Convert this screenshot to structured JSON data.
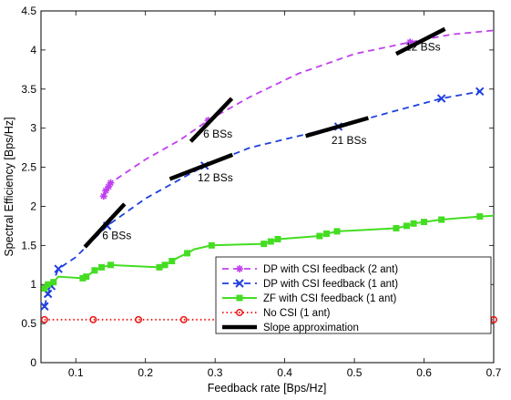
{
  "chart_data": {
    "type": "line",
    "xlabel": "Feedback rate [Bps/Hz]",
    "ylabel": "Spectral Efficiency [Bps/Hz]",
    "xlim": [
      0.05,
      0.7
    ],
    "ylim": [
      0,
      4.5
    ],
    "xticks": [
      "0.1",
      "0.2",
      "0.3",
      "0.4",
      "0.5",
      "0.6",
      "0.7"
    ],
    "yticks": [
      "0",
      "0.5",
      "1",
      "1.5",
      "2",
      "2.5",
      "3",
      "3.5",
      "4",
      "4.5"
    ],
    "grid": false,
    "legend_position": "bottom-right",
    "series": [
      {
        "name": "DP with CSI feedback (2 ant)",
        "color": "#bf40f0",
        "line": "dashed",
        "marker": "asterisk",
        "x": [
          0.14,
          0.143,
          0.147,
          0.15,
          0.2,
          0.25,
          0.29,
          0.35,
          0.42,
          0.5,
          0.58,
          0.64,
          0.7
        ],
        "y": [
          2.13,
          2.2,
          2.25,
          2.3,
          2.6,
          2.85,
          3.1,
          3.4,
          3.7,
          3.95,
          4.1,
          4.2,
          4.25
        ],
        "markers": [
          [
            0.14,
            2.13
          ],
          [
            0.143,
            2.2
          ],
          [
            0.147,
            2.25
          ],
          [
            0.15,
            2.3
          ],
          [
            0.29,
            3.1
          ],
          [
            0.58,
            4.1
          ]
        ]
      },
      {
        "name": "DP with CSI feedback (1 ant)",
        "color": "#1f3fe0",
        "line": "dashed",
        "marker": "x",
        "x": [
          0.055,
          0.06,
          0.065,
          0.075,
          0.1,
          0.145,
          0.2,
          0.285,
          0.35,
          0.42,
          0.477,
          0.55,
          0.625,
          0.68
        ],
        "y": [
          0.72,
          0.88,
          0.98,
          1.2,
          1.35,
          1.75,
          2.1,
          2.52,
          2.75,
          2.9,
          3.02,
          3.2,
          3.38,
          3.47
        ],
        "markers": [
          [
            0.055,
            0.72
          ],
          [
            0.06,
            0.88
          ],
          [
            0.065,
            0.98
          ],
          [
            0.075,
            1.2
          ],
          [
            0.145,
            1.75
          ],
          [
            0.285,
            2.52
          ],
          [
            0.477,
            3.02
          ],
          [
            0.625,
            3.38
          ],
          [
            0.68,
            3.47
          ]
        ]
      },
      {
        "name": "ZF with CSI feedback (1 ant)",
        "color": "#44dd22",
        "line": "solid",
        "marker": "square",
        "x": [
          0.055,
          0.06,
          0.068,
          0.075,
          0.11,
          0.115,
          0.127,
          0.137,
          0.15,
          0.22,
          0.228,
          0.238,
          0.248,
          0.26,
          0.27,
          0.295,
          0.37,
          0.38,
          0.39,
          0.45,
          0.46,
          0.475,
          0.56,
          0.575,
          0.585,
          0.6,
          0.625,
          0.68,
          0.7
        ],
        "y": [
          0.95,
          1.0,
          1.03,
          1.1,
          1.08,
          1.1,
          1.18,
          1.22,
          1.25,
          1.22,
          1.25,
          1.3,
          1.35,
          1.4,
          1.45,
          1.5,
          1.52,
          1.55,
          1.58,
          1.62,
          1.65,
          1.68,
          1.72,
          1.75,
          1.78,
          1.8,
          1.83,
          1.87,
          1.88
        ],
        "markers": [
          [
            0.055,
            0.95
          ],
          [
            0.06,
            1.0
          ],
          [
            0.068,
            1.03
          ],
          [
            0.11,
            1.08
          ],
          [
            0.115,
            1.1
          ],
          [
            0.127,
            1.18
          ],
          [
            0.137,
            1.22
          ],
          [
            0.15,
            1.25
          ],
          [
            0.22,
            1.22
          ],
          [
            0.228,
            1.25
          ],
          [
            0.238,
            1.3
          ],
          [
            0.26,
            1.4
          ],
          [
            0.295,
            1.5
          ],
          [
            0.37,
            1.52
          ],
          [
            0.38,
            1.55
          ],
          [
            0.39,
            1.58
          ],
          [
            0.45,
            1.62
          ],
          [
            0.46,
            1.65
          ],
          [
            0.475,
            1.68
          ],
          [
            0.56,
            1.72
          ],
          [
            0.575,
            1.75
          ],
          [
            0.585,
            1.78
          ],
          [
            0.6,
            1.8
          ],
          [
            0.625,
            1.83
          ],
          [
            0.68,
            1.87
          ]
        ]
      },
      {
        "name": "No CSI (1 ant)",
        "color": "#ee1111",
        "line": "dotted",
        "marker": "circle",
        "x": [
          0.055,
          0.125,
          0.19,
          0.255,
          0.627,
          0.7
        ],
        "y": [
          0.55,
          0.55,
          0.55,
          0.55,
          0.55,
          0.55
        ],
        "markers": [
          [
            0.055,
            0.55
          ],
          [
            0.125,
            0.55
          ],
          [
            0.19,
            0.55
          ],
          [
            0.255,
            0.55
          ],
          [
            0.627,
            0.55
          ],
          [
            0.7,
            0.55
          ]
        ]
      },
      {
        "name": "Slope approximation",
        "color": "#000000",
        "line": "thick",
        "marker": "none",
        "segments": [
          [
            [
              0.113,
              1.48
            ],
            [
              0.17,
              2.03
            ]
          ],
          [
            [
              0.265,
              2.83
            ],
            [
              0.324,
              3.38
            ]
          ],
          [
            [
              0.235,
              2.35
            ],
            [
              0.325,
              2.66
            ]
          ],
          [
            [
              0.43,
              2.9
            ],
            [
              0.52,
              3.13
            ]
          ],
          [
            [
              0.56,
              3.95
            ],
            [
              0.63,
              4.27
            ]
          ]
        ]
      }
    ],
    "annotations": [
      {
        "text": "6 BSs",
        "x": 0.138,
        "y": 1.58
      },
      {
        "text": "6 BSs",
        "x": 0.283,
        "y": 2.88
      },
      {
        "text": "12 BSs",
        "x": 0.275,
        "y": 2.32
      },
      {
        "text": "21 BSs",
        "x": 0.467,
        "y": 2.8
      },
      {
        "text": "12 BSs",
        "x": 0.573,
        "y": 3.99
      }
    ]
  }
}
